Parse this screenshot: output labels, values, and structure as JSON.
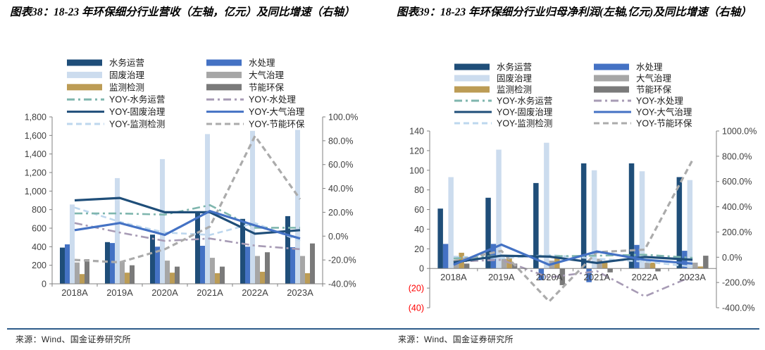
{
  "page": {
    "source_left": "来源：Wind、国金证券研究所",
    "source_right": "来源：Wind、国金证券研究所",
    "rule_color": "#2E5C8A"
  },
  "chart_data": [
    {
      "type": "combo",
      "figure_label": "图表38",
      "title": "图表38：18-23 年环保细分行业营收（左轴，亿元）及同比增速（右轴）",
      "categories": [
        "2018A",
        "2019A",
        "2020A",
        "2021A",
        "2022A",
        "2023A"
      ],
      "left_axis": {
        "unit": "亿元",
        "min": 0,
        "max": 1800,
        "step": 200,
        "ticks": [
          {
            "v": 0,
            "label": "0"
          },
          {
            "v": 200,
            "label": "200"
          },
          {
            "v": 400,
            "label": "400"
          },
          {
            "v": 600,
            "label": "600"
          },
          {
            "v": 800,
            "label": "800"
          },
          {
            "v": 1000,
            "label": "1,000"
          },
          {
            "v": 1200,
            "label": "1,200"
          },
          {
            "v": 1400,
            "label": "1,400"
          },
          {
            "v": 1600,
            "label": "1,600"
          },
          {
            "v": 1800,
            "label": "1,800"
          }
        ]
      },
      "right_axis": {
        "unit": "%",
        "min": -40,
        "max": 100,
        "step": 20,
        "ticks": [
          {
            "v": -40,
            "label": "-40.0%"
          },
          {
            "v": -20,
            "label": "-20.0%"
          },
          {
            "v": 0,
            "label": "0.0%"
          },
          {
            "v": 20,
            "label": "20.0%"
          },
          {
            "v": 40,
            "label": "40.0%"
          },
          {
            "v": 60,
            "label": "60.0%"
          },
          {
            "v": 80,
            "label": "80.0%"
          },
          {
            "v": 100,
            "label": "100.0%"
          }
        ]
      },
      "bar_series": [
        {
          "name": "水务运营",
          "color": "#1F4E79",
          "values": [
            390,
            450,
            530,
            760,
            700,
            730
          ]
        },
        {
          "name": "水处理",
          "color": "#4472C4",
          "values": [
            425,
            440,
            400,
            410,
            400,
            395
          ]
        },
        {
          "name": "固废治理",
          "color": "#CCDCEE",
          "values": [
            855,
            1140,
            1345,
            1615,
            1650,
            1660
          ]
        },
        {
          "name": "大气治理",
          "color": "#A6A6A6",
          "values": [
            230,
            245,
            250,
            280,
            300,
            300
          ]
        },
        {
          "name": "监测检测",
          "color": "#BC9C55",
          "values": [
            105,
            120,
            120,
            115,
            130,
            115
          ]
        },
        {
          "name": "节能环保",
          "color": "#7A7A7A",
          "values": [
            265,
            200,
            185,
            185,
            340,
            435
          ]
        }
      ],
      "line_series": [
        {
          "name": "YOY-水务运营",
          "color": "#7FB6AE",
          "dash": "dashdot",
          "values": [
            19,
            19,
            18,
            26,
            7,
            7
          ]
        },
        {
          "name": "YOY-水处理",
          "color": "#A79BB5",
          "dash": "dashdot",
          "values": [
            11,
            3,
            -4,
            -2,
            -8,
            -11
          ]
        },
        {
          "name": "YOY-固废治理",
          "color": "#1F4E79",
          "dash": "solid",
          "values": [
            30,
            32,
            20,
            20,
            2,
            5
          ]
        },
        {
          "name": "YOY-大气治理",
          "color": "#4472C4",
          "dash": "solid",
          "values": [
            5,
            11,
            1,
            21,
            9,
            -2
          ]
        },
        {
          "name": "YOY-监测检测",
          "color": "#BDD7EE",
          "dash": "dashed",
          "values": [
            24,
            12,
            3,
            1,
            11,
            -4
          ]
        },
        {
          "name": "YOY-节能环保",
          "color": "#ABABAB",
          "dash": "dashed",
          "values": [
            -20,
            -22,
            -11,
            8,
            84,
            31
          ]
        }
      ]
    },
    {
      "type": "combo",
      "figure_label": "图表39",
      "title": "图表39：18-23 年环保细分行业归母净利润(左轴,亿元)及同比增速（右轴）",
      "categories": [
        "2018A",
        "2019A",
        "2020A",
        "2021A",
        "2022A",
        "2023A"
      ],
      "left_axis": {
        "unit": "亿元",
        "min": -40,
        "max": 140,
        "step": 20,
        "ticks": [
          {
            "v": -40,
            "label": "(40)",
            "color": "#FF0000"
          },
          {
            "v": -20,
            "label": "(20)",
            "color": "#FF0000"
          },
          {
            "v": 0,
            "label": "0"
          },
          {
            "v": 20,
            "label": "20"
          },
          {
            "v": 40,
            "label": "40"
          },
          {
            "v": 60,
            "label": "60"
          },
          {
            "v": 80,
            "label": "80"
          },
          {
            "v": 100,
            "label": "100"
          },
          {
            "v": 120,
            "label": "120"
          },
          {
            "v": 140,
            "label": "140"
          }
        ]
      },
      "right_axis": {
        "unit": "%",
        "min": -400,
        "max": 1000,
        "step": 200,
        "ticks": [
          {
            "v": -400,
            "label": "-400.0%"
          },
          {
            "v": -200,
            "label": "-200.0%"
          },
          {
            "v": 0,
            "label": "0.0%"
          },
          {
            "v": 200,
            "label": "200.0%"
          },
          {
            "v": 400,
            "label": "400.0%"
          },
          {
            "v": 600,
            "label": "600.0%"
          },
          {
            "v": 800,
            "label": "800.0%"
          },
          {
            "v": 1000,
            "label": "1000.0%"
          }
        ]
      },
      "bar_series": [
        {
          "name": "水务运营",
          "color": "#1F4E79",
          "values": [
            61,
            72,
            87,
            107,
            107,
            93
          ]
        },
        {
          "name": "水处理",
          "color": "#4472C4",
          "values": [
            25,
            25,
            -12,
            -14,
            24,
            18
          ]
        },
        {
          "name": "固废治理",
          "color": "#CCDCEE",
          "values": [
            93,
            121,
            128,
            100,
            99,
            90
          ]
        },
        {
          "name": "大气治理",
          "color": "#A6A6A6",
          "values": [
            7,
            10,
            8,
            10,
            6,
            6
          ]
        },
        {
          "name": "监测检测",
          "color": "#BC9C55",
          "values": [
            16,
            13,
            13,
            7,
            6,
            2
          ]
        },
        {
          "name": "节能环保",
          "color": "#7A7A7A",
          "values": [
            5,
            5,
            -17,
            -4,
            -3,
            13
          ]
        }
      ],
      "line_series": [
        {
          "name": "YOY-水务运营",
          "color": "#7FB6AE",
          "dash": "dashdot",
          "values": [
            -10,
            12,
            8,
            12,
            20,
            -5
          ]
        },
        {
          "name": "YOY-水处理",
          "color": "#A79BB5",
          "dash": "dashdot",
          "values": [
            -35,
            -20,
            -160,
            -110,
            -310,
            -150
          ]
        },
        {
          "name": "YOY-固废治理",
          "color": "#1F4E79",
          "dash": "solid",
          "values": [
            -40,
            12,
            5,
            -45,
            2,
            -20
          ]
        },
        {
          "name": "YOY-大气治理",
          "color": "#4472C4",
          "dash": "solid",
          "values": [
            -60,
            100,
            -60,
            45,
            -20,
            -50
          ]
        },
        {
          "name": "YOY-监测检测",
          "color": "#BDD7EE",
          "dash": "dashed",
          "values": [
            5,
            -8,
            18,
            -12,
            -35,
            -75
          ]
        },
        {
          "name": "YOY-节能环保",
          "color": "#ABABAB",
          "dash": "dashed",
          "values": [
            -30,
            50,
            -350,
            40,
            60,
            770
          ]
        }
      ]
    }
  ]
}
